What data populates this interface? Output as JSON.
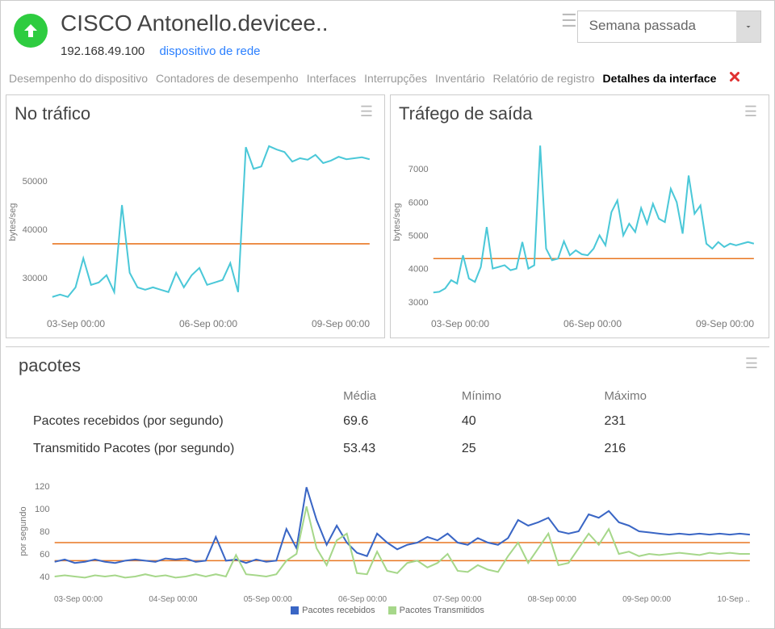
{
  "header": {
    "title": "CISCO Antonello.devicee..",
    "ip": "192.168.49.100",
    "device_link": "dispositivo de rede",
    "selector_label": "Semana passada"
  },
  "tabs": [
    "Desempenho do dispositivo",
    "Contadores de desempenho",
    "Interfaces",
    "Interrupções",
    "Inventário",
    "Relatório de registro",
    "Detalhes da interface"
  ],
  "tab_active_index": 6,
  "chart_in": {
    "title": "No tráfico",
    "ylabel": "bytes/seg",
    "line_color": "#4bc8d8",
    "threshold_color": "#e87722",
    "ylim": [
      25000,
      58000
    ],
    "threshold_y": 37000,
    "yticks": [
      30000,
      40000,
      50000
    ],
    "xtick_labels": [
      "03-Sep 00:00",
      "06-Sep 00:00",
      "09-Sep 00:00"
    ],
    "data": [
      26000,
      26500,
      26000,
      28000,
      34000,
      28500,
      29000,
      30500,
      27000,
      45000,
      31000,
      28000,
      27500,
      28000,
      27500,
      27000,
      31000,
      28000,
      30500,
      32000,
      28500,
      29000,
      29500,
      33000,
      27000,
      57000,
      52500,
      53000,
      57200,
      56500,
      56000,
      54000,
      54700,
      54400,
      55400,
      53700,
      54200,
      55000,
      54500,
      54700,
      54900,
      54500
    ]
  },
  "chart_out": {
    "title": "Tráfego de saída",
    "ylabel": "bytes/seg",
    "line_color": "#4bc8d8",
    "threshold_color": "#e87722",
    "ylim": [
      3000,
      7800
    ],
    "threshold_y": 4300,
    "yticks": [
      3000,
      4000,
      5000,
      6000,
      7000
    ],
    "xtick_labels": [
      "03-Sep 00:00",
      "06-Sep 00:00",
      "09-Sep 00:00"
    ],
    "data": [
      3280,
      3300,
      3400,
      3650,
      3550,
      4400,
      3700,
      3600,
      4050,
      5250,
      4000,
      4050,
      4100,
      3950,
      4000,
      4800,
      4000,
      4100,
      7700,
      4600,
      4250,
      4300,
      4820,
      4400,
      4550,
      4430,
      4400,
      4600,
      5000,
      4700,
      5700,
      6050,
      5000,
      5350,
      5100,
      5820,
      5350,
      5950,
      5500,
      5400,
      6400,
      6000,
      5050,
      6800,
      5650,
      5900,
      4750,
      4600,
      4800,
      4650,
      4750,
      4700,
      4750,
      4800,
      4750
    ]
  },
  "packets": {
    "title": "pacotes",
    "columns": [
      "",
      "Média",
      "Mínimo",
      "Máximo"
    ],
    "rows": [
      {
        "label": "Pacotes recebidos (por segundo)",
        "mean": "69.6",
        "min": "40",
        "max": "231"
      },
      {
        "label": "Transmitido Pacotes (por segundo)",
        "mean": "53.43",
        "min": "25",
        "max": "216"
      }
    ],
    "chart": {
      "ylabel": "por segundo",
      "ylim": [
        35,
        125
      ],
      "yticks": [
        40,
        60,
        80,
        100,
        120
      ],
      "xtick_labels": [
        "03-Sep 00:00",
        "04-Sep 00:00",
        "05-Sep 00:00",
        "06-Sep 00:00",
        "07-Sep 00:00",
        "08-Sep 00:00",
        "09-Sep 00:00",
        "10-Sep .."
      ],
      "thresholds": [
        {
          "y": 70,
          "color": "#e87722"
        },
        {
          "y": 54,
          "color": "#e87722"
        }
      ],
      "series": [
        {
          "label": "Pacotes recebidos",
          "color": "#3a66c5",
          "data": [
            53,
            55,
            52,
            53,
            55,
            53,
            52,
            54,
            55,
            54,
            53,
            56,
            55,
            56,
            53,
            54,
            75,
            54,
            55,
            52,
            55,
            53,
            54,
            82,
            65,
            119,
            90,
            68,
            85,
            70,
            61,
            58,
            78,
            70,
            64,
            68,
            70,
            75,
            72,
            78,
            70,
            68,
            74,
            70,
            68,
            74,
            90,
            85,
            88,
            92,
            80,
            78,
            80,
            95,
            92,
            98,
            88,
            85,
            80,
            79,
            78,
            77,
            78,
            77,
            78,
            77,
            78,
            77,
            78,
            77
          ]
        },
        {
          "label": "Pacotes Transmitidos",
          "color": "#a6d78a",
          "data": [
            40,
            41,
            40,
            39,
            41,
            40,
            41,
            39,
            40,
            42,
            40,
            41,
            39,
            40,
            42,
            40,
            42,
            40,
            59,
            42,
            41,
            40,
            42,
            54,
            60,
            102,
            65,
            50,
            72,
            78,
            43,
            42,
            62,
            45,
            43,
            52,
            54,
            48,
            52,
            60,
            45,
            44,
            50,
            46,
            44,
            58,
            70,
            52,
            65,
            78,
            50,
            52,
            65,
            78,
            68,
            82,
            60,
            62,
            58,
            60,
            59,
            60,
            61,
            60,
            59,
            61,
            60,
            61,
            60,
            60
          ]
        }
      ]
    }
  }
}
